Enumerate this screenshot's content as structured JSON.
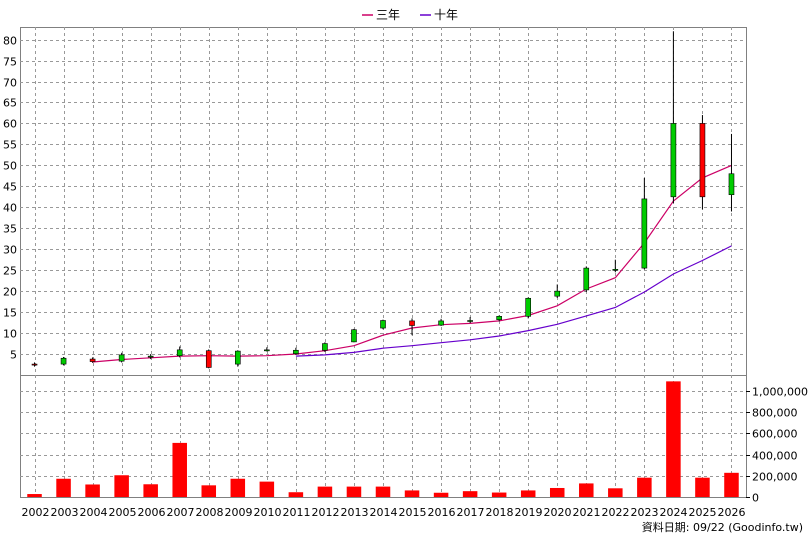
{
  "chart_data": {
    "type": "candlestick",
    "legend": {
      "placement": "top-center",
      "items": [
        {
          "name": "三年",
          "color": "#cc0066"
        },
        {
          "name": "十年",
          "color": "#6600cc"
        }
      ]
    },
    "categories": [
      "2002",
      "2003",
      "2004",
      "2005",
      "2006",
      "2007",
      "2008",
      "2009",
      "2010",
      "2011",
      "2012",
      "2013",
      "2014",
      "2015",
      "2016",
      "2017",
      "2018",
      "2019",
      "2020",
      "2021",
      "2022",
      "2023",
      "2024",
      "2025",
      "2026"
    ],
    "price_axis": {
      "ticks": [
        "5",
        "10",
        "15",
        "20",
        "25",
        "30",
        "35",
        "40",
        "45",
        "50",
        "55",
        "60",
        "65",
        "70",
        "75",
        "80"
      ],
      "ylim": [
        0,
        83
      ]
    },
    "volume_axis": {
      "ticks": [
        "0",
        "200,000",
        "400,000",
        "600,000",
        "800,000",
        "1,000,000"
      ],
      "ylim": [
        0,
        1150000
      ]
    },
    "ohlc": [
      {
        "open": 2.4,
        "high": 3.0,
        "low": 2.0,
        "close": 2.6
      },
      {
        "open": 4.0,
        "high": 4.3,
        "low": 2.3,
        "close": 2.6
      },
      {
        "open": 3.2,
        "high": 4.2,
        "low": 2.9,
        "close": 3.8
      },
      {
        "open": 4.8,
        "high": 5.3,
        "low": 3.0,
        "close": 3.3
      },
      {
        "open": 4.5,
        "high": 5.0,
        "low": 3.8,
        "close": 4.3
      },
      {
        "open": 6.0,
        "high": 6.8,
        "low": 4.2,
        "close": 4.6
      },
      {
        "open": 1.8,
        "high": 6.1,
        "low": 1.6,
        "close": 5.8
      },
      {
        "open": 5.7,
        "high": 5.9,
        "low": 2.0,
        "close": 2.6
      },
      {
        "open": 6.0,
        "high": 6.6,
        "low": 5.6,
        "close": 5.8
      },
      {
        "open": 5.9,
        "high": 6.5,
        "low": 4.8,
        "close": 5.1
      },
      {
        "open": 7.5,
        "high": 7.8,
        "low": 5.5,
        "close": 5.9
      },
      {
        "open": 10.8,
        "high": 11.0,
        "low": 7.8,
        "close": 7.9
      },
      {
        "open": 13.0,
        "high": 13.2,
        "low": 10.9,
        "close": 11.2
      },
      {
        "open": 11.8,
        "high": 13.5,
        "low": 9.5,
        "close": 12.9
      },
      {
        "open": 12.9,
        "high": 13.4,
        "low": 11.7,
        "close": 11.9
      },
      {
        "open": 13.0,
        "high": 13.8,
        "low": 12.4,
        "close": 12.9
      },
      {
        "open": 14.0,
        "high": 14.2,
        "low": 12.8,
        "close": 13.2
      },
      {
        "open": 18.3,
        "high": 18.5,
        "low": 13.5,
        "close": 14.0
      },
      {
        "open": 20.0,
        "high": 21.6,
        "low": 18.4,
        "close": 18.8
      },
      {
        "open": 25.5,
        "high": 25.9,
        "low": 19.8,
        "close": 20.3
      },
      {
        "open": 25.2,
        "high": 27.5,
        "low": 24.5,
        "close": 25.0
      },
      {
        "open": 42.0,
        "high": 47.0,
        "low": 25.2,
        "close": 25.5
      },
      {
        "open": 60.0,
        "high": 82.0,
        "low": 41.0,
        "close": 42.5
      },
      {
        "open": 42.5,
        "high": 62.0,
        "low": 39.5,
        "close": 60.0
      },
      {
        "open": 48.0,
        "high": 57.5,
        "low": 39.0,
        "close": 43.0
      }
    ],
    "ma_3y": [
      null,
      null,
      3.1,
      3.7,
      4.1,
      4.5,
      4.6,
      4.5,
      4.6,
      5.0,
      5.8,
      7.0,
      9.5,
      11.2,
      12.0,
      12.3,
      12.9,
      14.2,
      16.5,
      20.5,
      23.2,
      31.5,
      41.5,
      47.0,
      50.0
    ],
    "ma_10y": [
      null,
      null,
      null,
      null,
      null,
      null,
      null,
      null,
      null,
      4.5,
      4.8,
      5.4,
      6.4,
      7.0,
      7.7,
      8.4,
      9.3,
      10.6,
      12.1,
      14.1,
      16.1,
      19.8,
      24.1,
      27.3,
      30.8
    ],
    "volume": [
      28000,
      172000,
      118000,
      205000,
      120000,
      510000,
      110000,
      172000,
      145000,
      45000,
      98000,
      98000,
      98000,
      62000,
      40000,
      55000,
      42000,
      62000,
      85000,
      128000,
      82000,
      182000,
      1090000,
      182000,
      228000
    ],
    "colors": {
      "up": "#ff0000",
      "down": "#00cc00",
      "wick": "#000000",
      "volume": "#ff0000",
      "grid": "#999999"
    },
    "footer": "資料日期: 09/22  (Goodinfo.tw)"
  }
}
